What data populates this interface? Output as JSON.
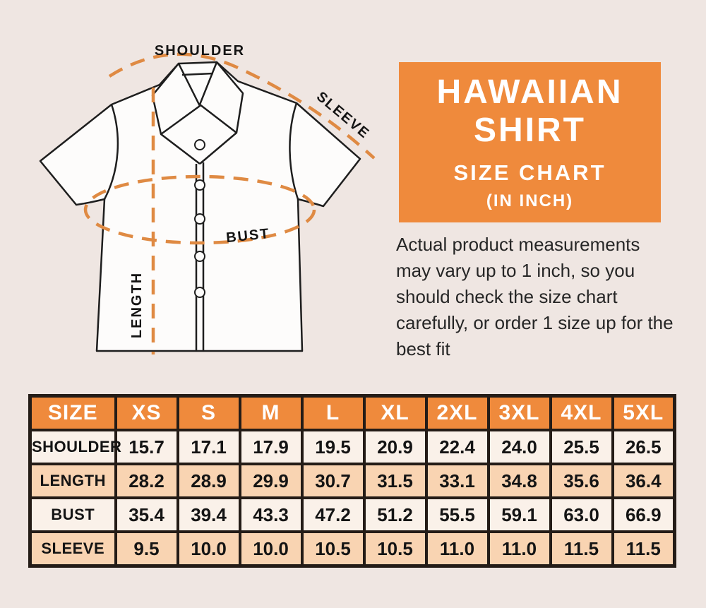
{
  "page": {
    "background_color": "#EFE6E2"
  },
  "diagram": {
    "labels": {
      "shoulder": "SHOULDER",
      "sleeve": "SLEEVE",
      "length": "LENGTH",
      "bust": "BUST"
    },
    "dash_color": "#DF8A43",
    "outline_color": "#1E1E1E"
  },
  "header": {
    "title_line1": "HAWAIIAN",
    "title_line2": "SHIRT",
    "subtitle": "SIZE CHART",
    "unit_note": "(IN INCH)",
    "box_color": "#EF8A3C"
  },
  "description": "Actual product measurements may vary up to 1 inch, so you should check the size chart carefully, or order 1 size up for the best fit",
  "chart_data": {
    "type": "table",
    "title": "Hawaiian Shirt Size Chart (in inch)",
    "columns": [
      "SIZE",
      "XS",
      "S",
      "M",
      "L",
      "XL",
      "2XL",
      "3XL",
      "4XL",
      "5XL"
    ],
    "rows": [
      {
        "label": "SHOULDER",
        "values": [
          "15.7",
          "17.1",
          "17.9",
          "19.5",
          "20.9",
          "22.4",
          "24.0",
          "25.5",
          "26.5"
        ]
      },
      {
        "label": "LENGTH",
        "values": [
          "28.2",
          "28.9",
          "29.9",
          "30.7",
          "31.5",
          "33.1",
          "34.8",
          "35.6",
          "36.4"
        ]
      },
      {
        "label": "BUST",
        "values": [
          "35.4",
          "39.4",
          "43.3",
          "47.2",
          "51.2",
          "55.5",
          "59.1",
          "63.0",
          "66.9"
        ]
      },
      {
        "label": "SLEEVE",
        "values": [
          "9.5",
          "10.0",
          "10.0",
          "10.5",
          "10.5",
          "11.0",
          "11.0",
          "11.5",
          "11.5"
        ]
      }
    ],
    "colors": {
      "header_bg": "#EF8A3C",
      "row_odd_bg": "#FAF1E9",
      "row_even_bg": "#F9D4B2",
      "grid": "#241C17"
    }
  }
}
